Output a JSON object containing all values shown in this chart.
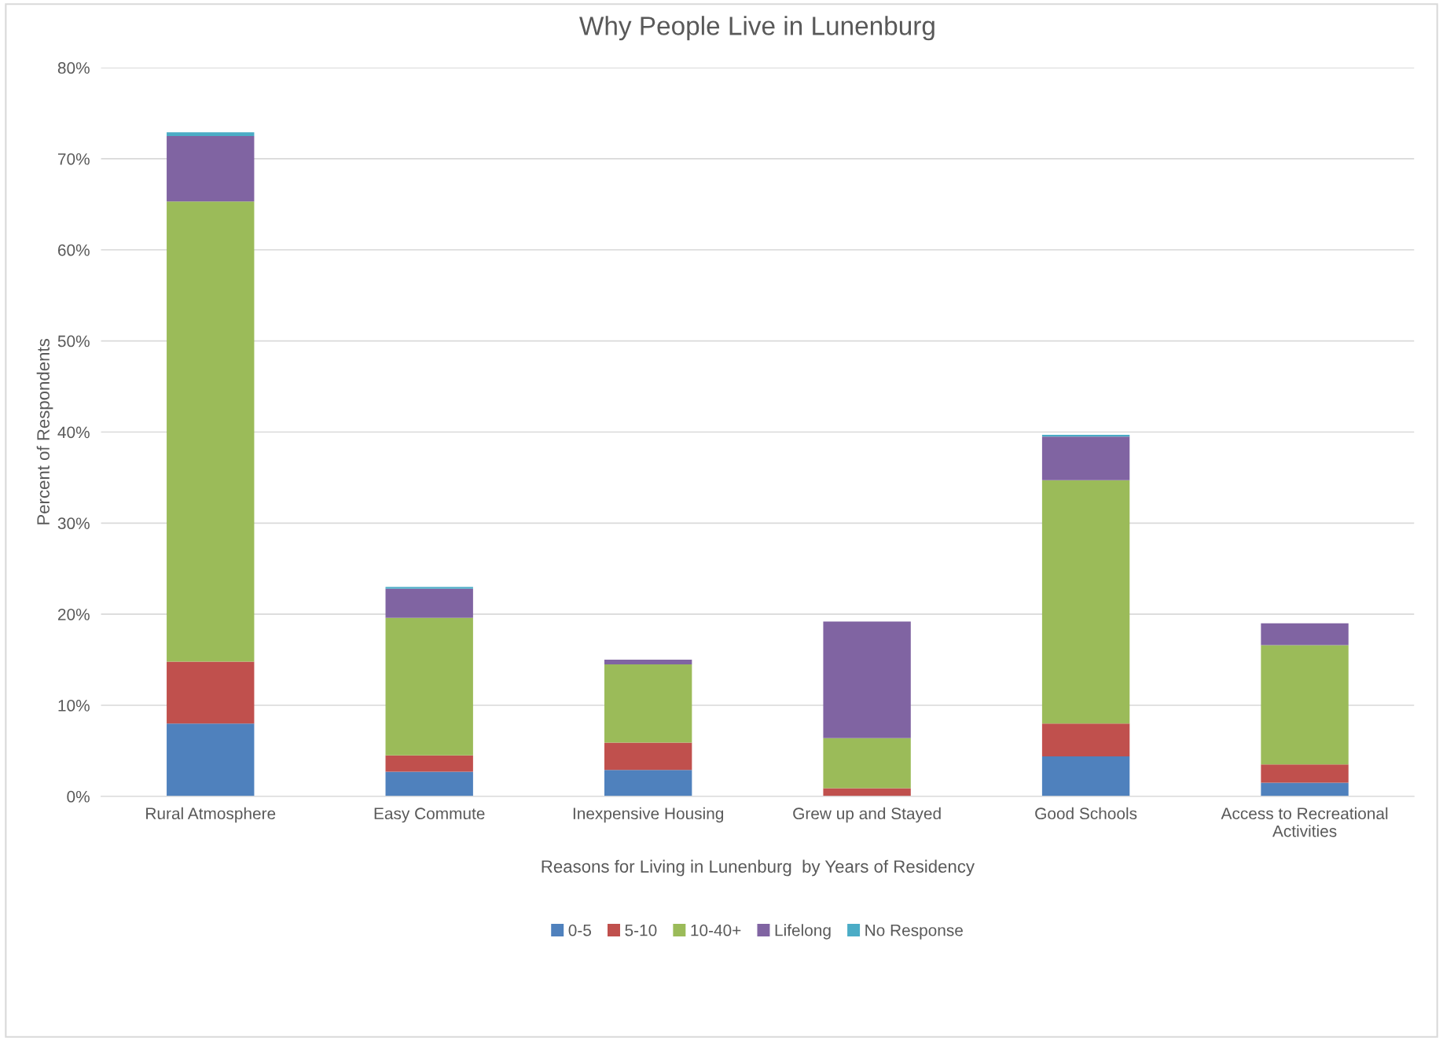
{
  "chart_data": {
    "type": "bar",
    "stacked": true,
    "title": "Why People Live in Lunenburg",
    "xlabel": "Reasons for Living in Lunenburg  by Years of Residency",
    "ylabel": "Percent of Respondents",
    "categories": [
      "Rural Atmosphere",
      "Easy Commute",
      "Inexpensive Housing",
      "Grew up and Stayed",
      "Good Schools",
      "Access to Recreational Activities"
    ],
    "series": [
      {
        "name": "0-5",
        "color": "#4f81bd",
        "values": [
          8.0,
          2.7,
          2.9,
          0,
          4.4,
          1.5
        ]
      },
      {
        "name": "5-10",
        "color": "#c0504d",
        "values": [
          6.8,
          1.8,
          3.0,
          0.9,
          3.6,
          2.0
        ]
      },
      {
        "name": "10-40+",
        "color": "#9bbb59",
        "values": [
          50.5,
          15.1,
          8.6,
          5.5,
          26.7,
          13.1
        ]
      },
      {
        "name": "Lifelong",
        "color": "#8064a2",
        "values": [
          7.2,
          3.2,
          0.5,
          12.8,
          4.8,
          2.4
        ]
      },
      {
        "name": "No Response",
        "color": "#4bacc6",
        "values": [
          0.4,
          0.2,
          0,
          0,
          0.2,
          0
        ]
      }
    ],
    "ylim": [
      0,
      80
    ],
    "yticks": [
      {
        "value": 0,
        "label": "0%"
      },
      {
        "value": 10,
        "label": "10%"
      },
      {
        "value": 20,
        "label": "20%"
      },
      {
        "value": 30,
        "label": "30%"
      },
      {
        "value": 40,
        "label": "40%"
      },
      {
        "value": 50,
        "label": "50%"
      },
      {
        "value": 60,
        "label": "60%"
      },
      {
        "value": 70,
        "label": "70%"
      },
      {
        "value": 80,
        "label": "80%"
      }
    ],
    "grid": "y",
    "legend": "bottom"
  }
}
